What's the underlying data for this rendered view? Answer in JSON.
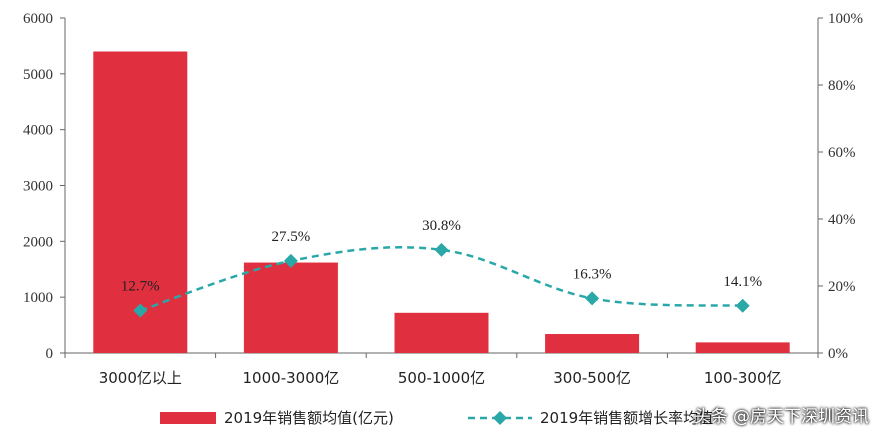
{
  "chart_data": {
    "type": "bar",
    "categories": [
      "3000亿以上",
      "1000-3000亿",
      "500-1000亿",
      "300-500亿",
      "100-300亿"
    ],
    "series": [
      {
        "name": "2019年销售额均值(亿元)",
        "type": "bar",
        "axis": "left",
        "color": "#e03040",
        "values": [
          5400,
          1620,
          720,
          340,
          190
        ]
      },
      {
        "name": "2019年销售额增长率均值",
        "type": "line",
        "axis": "right",
        "color": "#2aa8a8",
        "line_style": "dashed",
        "marker": "diamond",
        "values": [
          12.7,
          27.5,
          30.8,
          16.3,
          14.1
        ],
        "labels": [
          "12.7%",
          "27.5%",
          "30.8%",
          "16.3%",
          "14.1%"
        ]
      }
    ],
    "y_left": {
      "min": 0,
      "max": 6000,
      "ticks": [
        "0",
        "1000",
        "2000",
        "3000",
        "4000",
        "5000",
        "6000"
      ]
    },
    "y_right": {
      "min": 0,
      "max": 100,
      "ticks": [
        "0%",
        "20%",
        "40%",
        "60%",
        "80%",
        "100%"
      ]
    },
    "legend_position": "bottom",
    "grid": false,
    "watermark": "头条 @房天下深圳资讯"
  }
}
